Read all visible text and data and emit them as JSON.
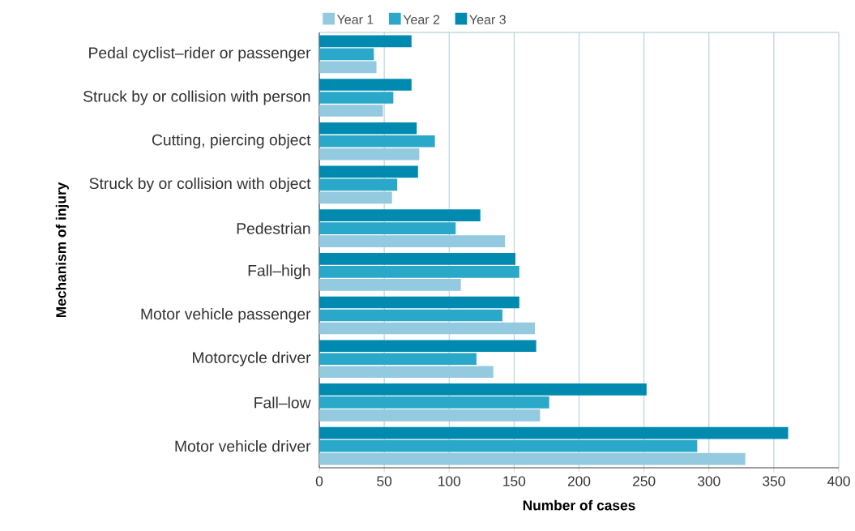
{
  "chart_data": {
    "type": "bar",
    "orientation": "horizontal",
    "xlabel": "Number of cases",
    "ylabel": "Mechanism of injury",
    "categories": [
      "Pedal cyclist–rider or passenger",
      "Struck by or collision with person",
      "Cutting, piercing object",
      "Struck by or collision with object",
      "Pedestrian",
      "Fall–high",
      "Motor vehicle passenger",
      "Motorcycle driver",
      "Fall–low",
      "Motor vehicle driver"
    ],
    "series": [
      {
        "name": "Year 1",
        "color": "#93cadf",
        "values": [
          44,
          49,
          77,
          56,
          143,
          109,
          166,
          134,
          170,
          328
        ]
      },
      {
        "name": "Year 2",
        "color": "#2aa8c9",
        "values": [
          42,
          57,
          89,
          60,
          105,
          154,
          141,
          121,
          177,
          291
        ]
      },
      {
        "name": "Year 3",
        "color": "#018ab0",
        "values": [
          71,
          71,
          75,
          76,
          124,
          151,
          154,
          167,
          252,
          361
        ]
      }
    ],
    "xlim": [
      0,
      400
    ],
    "xticks": [
      0,
      50,
      100,
      150,
      200,
      250,
      300,
      350,
      400
    ],
    "grid": "x",
    "legend": "top"
  }
}
